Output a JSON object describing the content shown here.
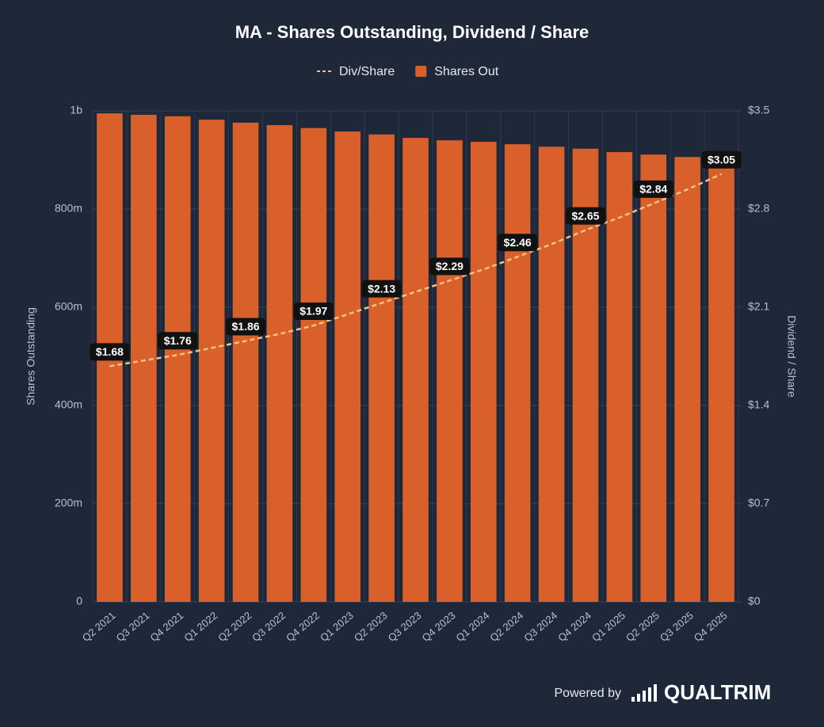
{
  "chart_data": {
    "type": "combo",
    "title": "MA - Shares Outstanding, Dividend / Share",
    "categories": [
      "Q2 2021",
      "Q3 2021",
      "Q4 2021",
      "Q1 2022",
      "Q2 2022",
      "Q3 2022",
      "Q4 2022",
      "Q1 2023",
      "Q2 2023",
      "Q3 2023",
      "Q4 2023",
      "Q1 2024",
      "Q2 2024",
      "Q3 2024",
      "Q4 2024",
      "Q1 2025",
      "Q2 2025",
      "Q3 2025",
      "Q4 2025"
    ],
    "series": [
      {
        "name": "Div/Share",
        "type": "line",
        "axis": "y2",
        "color": "#f5c08a",
        "values": [
          1.68,
          1.72,
          1.76,
          1.81,
          1.86,
          1.91,
          1.97,
          2.05,
          2.13,
          2.21,
          2.29,
          2.37,
          2.46,
          2.55,
          2.65,
          2.74,
          2.84,
          2.94,
          3.05
        ],
        "value_labels": [
          "$1.68",
          null,
          "$1.76",
          null,
          "$1.86",
          null,
          "$1.97",
          null,
          "$2.13",
          null,
          "$2.29",
          null,
          "$2.46",
          null,
          "$2.65",
          null,
          "$2.84",
          null,
          "$3.05"
        ]
      },
      {
        "name": "Shares Out",
        "type": "bar",
        "color": "#d95f2b",
        "values": [
          995000000,
          992000000,
          989000000,
          982000000,
          976000000,
          971000000,
          965000000,
          958000000,
          952000000,
          945000000,
          940000000,
          937000000,
          932000000,
          927000000,
          923000000,
          916000000,
          911000000,
          906000000,
          903000000
        ]
      }
    ],
    "y_label": "Shares Outstanding",
    "y2_label": "Dividend / Share",
    "ylim": [
      0,
      1000000000
    ],
    "yticks": [
      0,
      {
        "value": 200000000,
        "label": "200m"
      },
      {
        "value": 400000000,
        "label": "400m"
      },
      {
        "value": 600000000,
        "label": "600m"
      },
      {
        "value": 800000000,
        "label": "800m"
      },
      {
        "value": 1000000000,
        "label": "1b"
      }
    ],
    "y2lim": [
      0,
      3.5
    ],
    "y2ticks": [
      {
        "value": 0,
        "label": "$0"
      },
      {
        "value": 0.7,
        "label": "$0.7"
      },
      {
        "value": 1.4,
        "label": "$1.4"
      },
      {
        "value": 2.1,
        "label": "$2.1"
      },
      {
        "value": 2.8,
        "label": "$2.8"
      },
      {
        "value": 3.5,
        "label": "$3.5"
      }
    ],
    "grid": true
  },
  "footer": {
    "powered_by": "Powered by",
    "brand": "QUALTRIM"
  }
}
